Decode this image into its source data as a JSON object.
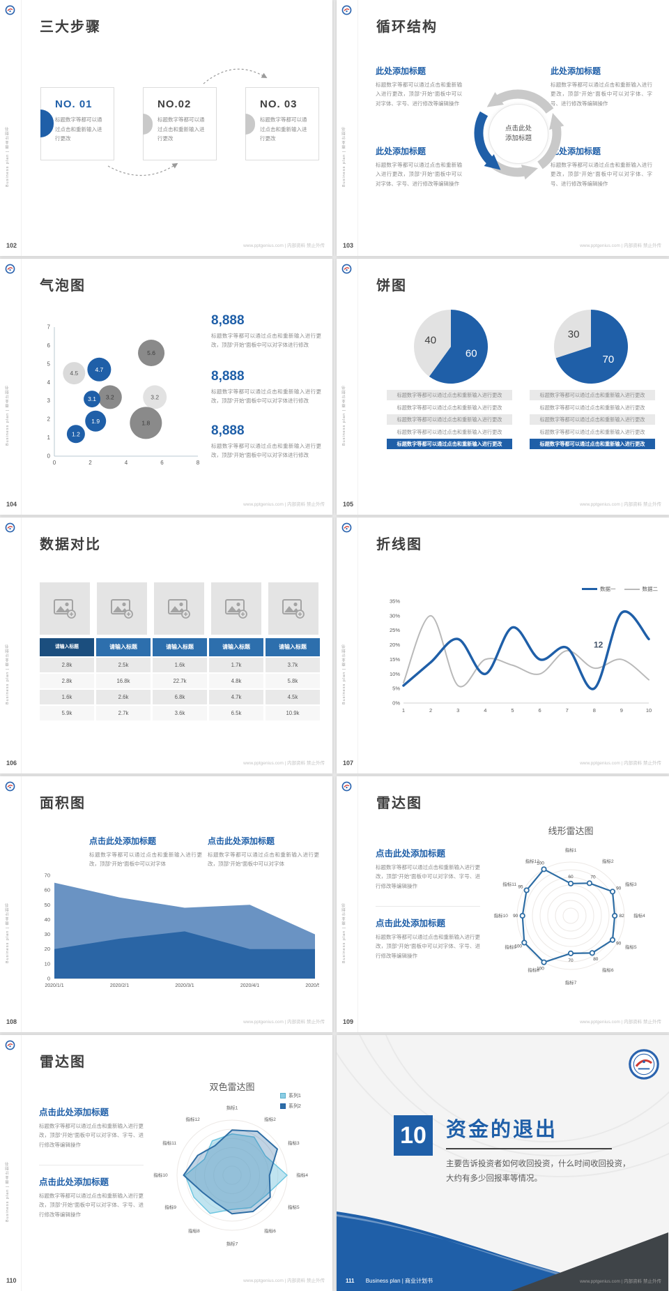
{
  "common": {
    "site_note": "www.pptgenius.com | 内部资料 禁止外传",
    "sidebar_text": "Business plan | 商业计划书",
    "primary_color": "#1f5fa8"
  },
  "slides": {
    "steps": {
      "page": "102",
      "title": "三大步骤",
      "body": "标题数字等都可以通过点击和重新输入进行更改",
      "items": [
        {
          "no": "NO. 01"
        },
        {
          "no": "NO.02"
        },
        {
          "no": "NO. 03"
        }
      ]
    },
    "cycle": {
      "page": "103",
      "title": "循环结构",
      "block_title": "此处添加标题",
      "block_body": "标题数字等都可以通过点击和重新输入进行更改，顶部“开始”面板中可以对字体、字号、进行修改等编辑操作",
      "center_label": "点击此处添加标题"
    },
    "bubble": {
      "page": "104",
      "title": "气泡图",
      "stat_value": "8,888",
      "stat_body": "标题数字等都可以通过点击和重新输入进行更改，顶部“开始”面板中可以对字体进行修改"
    },
    "pie": {
      "page": "105",
      "title": "饼图",
      "row_text": "标题数字等都可以通过点击和重新输入进行更改"
    },
    "compare": {
      "page": "106",
      "title": "数据对比"
    },
    "line": {
      "page": "107",
      "title": "折线图"
    },
    "area": {
      "page": "108",
      "title": "面积图",
      "block_title": "点击此处添加标题",
      "block_body": "标题数字等都可以通过点击和重新输入进行更改，顶部“开始”面板中可以对字体"
    },
    "radar1": {
      "page": "109",
      "title": "雷达图",
      "block_title": "点击此处添加标题",
      "block_body": "标题数字等都可以通过点击和重新输入进行更改，顶部“开始”面板中可以对字体、字号、进行修改等编辑操作"
    },
    "radar2": {
      "page": "110",
      "title": "雷达图",
      "block_title": "点击此处添加标题",
      "block_body": "标题数字等都可以通过点击和重新输入进行更改，顶部“开始”面板中可以对字体、字号、进行修改等编辑操作"
    },
    "cover": {
      "page": "111",
      "number": "10",
      "title": "资金的退出",
      "body": "主要告诉投资者如何收回投资，什么时间收回投资，大约有多少回报率等情况。",
      "footer_label": "Business plan | 商业计划书"
    }
  },
  "chart_data": [
    {
      "id": "chart-bubble",
      "type": "scatter",
      "title": "气泡图",
      "xlim": [
        0,
        8
      ],
      "ylim": [
        0,
        7
      ],
      "xticks": [
        "0",
        "2",
        "4",
        "6",
        "8"
      ],
      "yticks": [
        "0",
        "1",
        "2",
        "3",
        "4",
        "5",
        "6",
        "7"
      ],
      "points": [
        {
          "x": 1.1,
          "y": 4.5,
          "r": 16,
          "label": "4.5",
          "color": "#dadada",
          "text_color": "#595959"
        },
        {
          "x": 2.5,
          "y": 4.7,
          "r": 17,
          "label": "4.7",
          "color": "#1f5fa8",
          "text_color": "#ffffff"
        },
        {
          "x": 5.4,
          "y": 5.6,
          "r": 19,
          "label": "5.6",
          "color": "#8a8a8a",
          "text_color": "#3d3d3d"
        },
        {
          "x": 3.1,
          "y": 3.2,
          "r": 17,
          "label": "3.2",
          "color": "#8a8a8a",
          "text_color": "#3d3d3d"
        },
        {
          "x": 5.6,
          "y": 3.2,
          "r": 17,
          "label": "3.2",
          "color": "#e2e2e2",
          "text_color": "#595959"
        },
        {
          "x": 2.1,
          "y": 3.1,
          "r": 12,
          "label": "3.1",
          "color": "#1f5fa8",
          "text_color": "#ffffff"
        },
        {
          "x": 5.1,
          "y": 1.8,
          "r": 23,
          "label": "1.8",
          "color": "#8a8a8a",
          "text_color": "#3d3d3d"
        },
        {
          "x": 2.3,
          "y": 1.9,
          "r": 15,
          "label": "1.9",
          "color": "#1f5fa8",
          "text_color": "#ffffff"
        },
        {
          "x": 1.2,
          "y": 1.2,
          "r": 13,
          "label": "1.2",
          "color": "#1f5fa8",
          "text_color": "#ffffff"
        }
      ]
    },
    {
      "id": "chart-pie-1",
      "type": "pie",
      "values": [
        60,
        40
      ],
      "labels": [
        "60",
        "40"
      ],
      "colors": [
        "#1f5fa8",
        "#e2e2e2"
      ],
      "label_colors": [
        "#ffffff",
        "#404040"
      ]
    },
    {
      "id": "chart-pie-2",
      "type": "pie",
      "values": [
        70,
        30
      ],
      "labels": [
        "70",
        "30"
      ],
      "colors": [
        "#1f5fa8",
        "#e2e2e2"
      ],
      "label_colors": [
        "#ffffff",
        "#404040"
      ]
    },
    {
      "id": "cmp-table",
      "type": "table",
      "headers": [
        "请输入标题",
        "请输入标题",
        "请输入标题",
        "请输入标题",
        "请输入标题"
      ],
      "rows": [
        [
          "2.8k",
          "2.5k",
          "1.6k",
          "1.7k",
          "3.7k"
        ],
        [
          "2.8k",
          "16.8k",
          "22.7k",
          "4.8k",
          "5.8k"
        ],
        [
          "1.6k",
          "2.6k",
          "6.8k",
          "4.7k",
          "4.5k"
        ],
        [
          "5.9k",
          "2.7k",
          "3.6k",
          "6.5k",
          "10.9k"
        ]
      ]
    },
    {
      "id": "chart-line",
      "type": "line",
      "x": [
        1,
        2,
        3,
        4,
        5,
        6,
        7,
        8,
        9,
        10
      ],
      "ymax": 35,
      "yticks": [
        "0%",
        "5%",
        "10%",
        "15%",
        "20%",
        "25%",
        "30%",
        "35%"
      ],
      "series": [
        {
          "name": "数据一",
          "color": "#1f5fa8",
          "width": 3.5,
          "values": [
            6,
            14,
            22,
            10,
            26,
            15,
            19,
            5,
            31,
            22
          ]
        },
        {
          "name": "数据二",
          "color": "#b9b9b9",
          "width": 2,
          "values": [
            7,
            30,
            6,
            15,
            13,
            10,
            18,
            12,
            15,
            8
          ]
        }
      ],
      "annotation": {
        "text": "12",
        "x": 8.15,
        "y": 19
      }
    },
    {
      "id": "chart-area",
      "type": "area",
      "categories": [
        "2020/1/1",
        "2020/2/1",
        "2020/3/1",
        "2020/4/1",
        "2020/5/1"
      ],
      "ymax": 70,
      "yticks": [
        0,
        10,
        20,
        30,
        40,
        50,
        60,
        70
      ],
      "series": [
        {
          "color": "#6a93c3",
          "values": [
            65,
            55,
            48,
            50,
            30
          ]
        },
        {
          "color": "#2a65a5",
          "values": [
            20,
            27,
            32,
            20,
            20
          ]
        }
      ]
    },
    {
      "id": "chart-radar-1",
      "type": "radar",
      "title": "线形雷达图",
      "max": 100,
      "rings": 7,
      "pad": 35,
      "labels": [
        "指标1",
        "指标2",
        "指标3",
        "指标4",
        "指标5",
        "指标6",
        "指标7",
        "指标8",
        "指标9",
        "指标10",
        "指标11",
        "指标12"
      ],
      "series": [
        {
          "name": "指标",
          "color": "#2e6da4",
          "fill": "none",
          "width": 2.2,
          "markers": true,
          "show_values": true,
          "values": [
            60,
            70,
            90,
            82,
            90,
            80,
            70,
            100,
            100,
            90,
            95,
            100
          ]
        }
      ]
    },
    {
      "id": "chart-radar-2",
      "type": "radar",
      "title": "双色雷达图",
      "max": 100,
      "rings": 6,
      "pad": 32,
      "labels": [
        "指标1",
        "指标2",
        "指标3",
        "指标4",
        "指标5",
        "指标6",
        "指标7",
        "指标8",
        "指标9",
        "指标10",
        "指标11",
        "指标12"
      ],
      "series": [
        {
          "name": "系列1",
          "color": "#6ec6e0",
          "fill": "rgba(140,205,228,0.55)",
          "width": 1.5,
          "values": [
            75,
            80,
            70,
            100,
            72,
            68,
            62,
            80,
            80,
            85,
            58,
            72
          ]
        },
        {
          "name": "系列2",
          "color": "#2e6da4",
          "fill": "rgba(46,109,164,0.30)",
          "width": 2,
          "values": [
            82,
            92,
            95,
            68,
            80,
            76,
            70,
            58,
            62,
            88,
            72,
            62
          ]
        }
      ]
    }
  ]
}
